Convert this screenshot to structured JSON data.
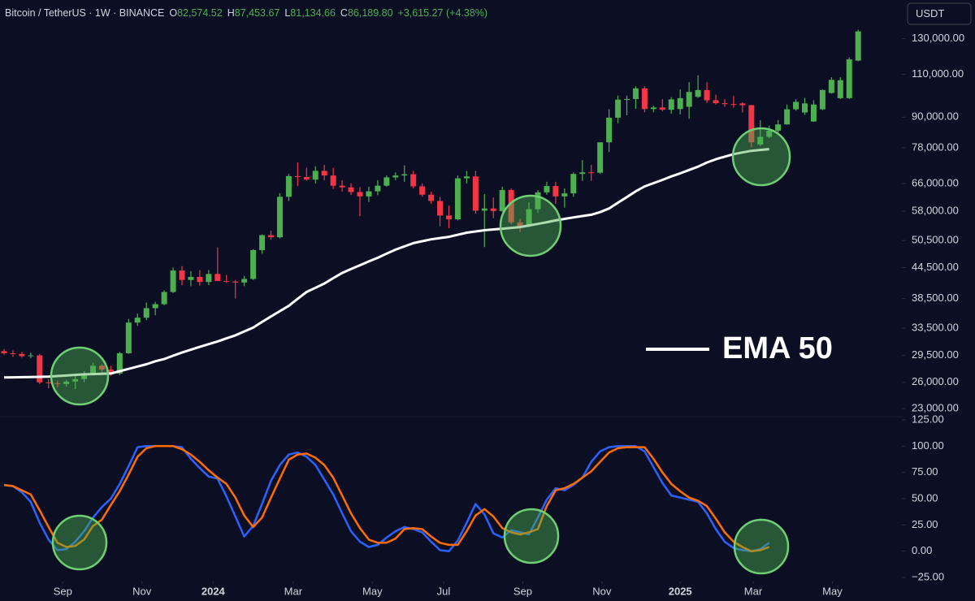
{
  "chart_data": [
    {
      "type": "candlestick",
      "title": "Bitcoin / TetherUS · 1W · BINANCE",
      "legend_values": [
        {
          "label": "O",
          "value": "82,574.52"
        },
        {
          "label": "H",
          "value": "87,453.67"
        },
        {
          "label": "L",
          "value": "81,134.66"
        },
        {
          "label": "C",
          "value": "86,189.80"
        }
      ],
      "change": "+3,615.27 (+4.38%)",
      "currency": "USDT",
      "log_scale": true,
      "up_color": "#4caf50",
      "down_color": "#f23645",
      "categories": [
        null,
        null,
        null,
        null,
        null,
        null,
        null,
        null,
        null,
        null,
        null,
        null,
        null,
        null,
        null,
        null,
        null,
        null,
        null,
        null,
        null,
        null,
        null,
        null,
        null,
        null,
        null,
        null,
        null,
        null,
        null,
        null,
        null,
        null,
        null,
        null,
        null,
        null,
        null,
        null,
        null,
        null,
        null,
        null,
        null,
        null,
        null,
        null,
        null,
        null,
        null,
        null,
        null,
        null,
        null,
        null,
        null,
        null,
        null,
        null,
        null,
        null,
        null,
        null,
        null,
        null,
        null,
        null,
        null,
        null,
        null,
        null,
        null,
        null,
        null,
        null,
        null,
        null,
        null,
        null,
        null,
        null,
        null,
        null,
        null,
        null,
        null,
        null,
        null,
        null,
        null,
        null,
        null,
        null,
        null,
        null,
        null
      ],
      "open": [
        30100,
        29800,
        29700,
        29400,
        29500,
        26000,
        25900,
        25800,
        26100,
        26400,
        27100,
        28100,
        27600,
        27100,
        29800,
        34400,
        35200,
        36800,
        37500,
        39700,
        43900,
        42000,
        42600,
        41600,
        43200,
        41800,
        41700,
        41500,
        42200,
        48300,
        51800,
        51300,
        62000,
        68300,
        68000,
        67200,
        70000,
        68500,
        65300,
        64800,
        63400,
        62100,
        63600,
        65300,
        67900,
        68500,
        68900,
        65100,
        62600,
        60800,
        56800,
        55800,
        67600,
        68200,
        58100,
        58700,
        58000,
        64000,
        55000,
        54000,
        58500,
        63300,
        65200,
        62100,
        63000,
        69000,
        69500,
        69400,
        80000,
        89800,
        97700,
        98000,
        103000,
        93500,
        94200,
        93200,
        93500,
        94500,
        99000,
        102200,
        97400,
        96100,
        95700,
        96000,
        95200,
        79200,
        82100,
        84500,
        87000,
        93400,
        92000,
        88200,
        93400,
        100800,
        98400,
        98400,
        117300
      ],
      "high": [
        30400,
        30200,
        30000,
        29900,
        29700,
        26400,
        26200,
        26300,
        26800,
        27400,
        28500,
        28300,
        28100,
        30000,
        35000,
        35900,
        37800,
        37900,
        40000,
        44500,
        44800,
        43800,
        44000,
        44000,
        48900,
        43000,
        42000,
        42800,
        48500,
        52000,
        52900,
        63000,
        69000,
        72800,
        71000,
        71500,
        72000,
        71000,
        67000,
        66000,
        64900,
        65000,
        67000,
        68500,
        69500,
        71800,
        70000,
        66000,
        63500,
        62000,
        59500,
        68500,
        70000,
        70000,
        62800,
        61800,
        65000,
        64500,
        56000,
        60500,
        64000,
        66500,
        66500,
        64500,
        69500,
        73600,
        72000,
        80000,
        93400,
        99600,
        99600,
        104000,
        104000,
        95000,
        98000,
        98800,
        102500,
        106000,
        109500,
        106000,
        100000,
        98000,
        99400,
        96500,
        95400,
        88700,
        86500,
        88800,
        95500,
        97900,
        98500,
        97400,
        102500,
        108500,
        108500,
        119000,
        135500
      ],
      "low": [
        29600,
        29300,
        29200,
        29100,
        25800,
        25300,
        25400,
        25500,
        25200,
        26000,
        26900,
        27000,
        26800,
        26900,
        29700,
        33900,
        34800,
        35600,
        37300,
        39500,
        41000,
        40800,
        40900,
        41000,
        42000,
        41400,
        38500,
        40800,
        42000,
        47500,
        50700,
        51000,
        60800,
        65200,
        66800,
        66000,
        67000,
        64300,
        63500,
        62500,
        56600,
        60500,
        62500,
        65000,
        67000,
        66500,
        64500,
        62000,
        60000,
        54000,
        53500,
        55500,
        66000,
        57300,
        49000,
        56100,
        57800,
        54500,
        52500,
        53800,
        57500,
        62600,
        60000,
        58900,
        62000,
        66800,
        66800,
        69000,
        76500,
        87500,
        90800,
        93600,
        92100,
        92100,
        92500,
        91500,
        91200,
        89300,
        98500,
        96200,
        95500,
        94500,
        94100,
        92000,
        78200,
        78600,
        81500,
        83000,
        86900,
        92800,
        91000,
        88000,
        93000,
        100500,
        98000,
        98000,
        117000
      ],
      "close": [
        29800,
        29700,
        29400,
        29500,
        26000,
        25900,
        25800,
        26100,
        26400,
        27100,
        28100,
        27600,
        27100,
        29800,
        34400,
        35200,
        36800,
        37500,
        39700,
        43900,
        42000,
        42600,
        41600,
        43200,
        41800,
        41700,
        41500,
        42200,
        48300,
        51800,
        51300,
        62000,
        68300,
        68000,
        67200,
        70000,
        68500,
        65300,
        64800,
        63400,
        62100,
        63600,
        65300,
        67900,
        68500,
        68900,
        65100,
        62600,
        60800,
        56800,
        55800,
        67600,
        68200,
        58100,
        58700,
        58000,
        64000,
        55000,
        54000,
        58500,
        63300,
        65200,
        62100,
        63000,
        69000,
        69500,
        69400,
        80000,
        89800,
        97700,
        98000,
        103000,
        93500,
        94200,
        93200,
        97800,
        98400,
        101300,
        102200,
        97400,
        96100,
        95700,
        95500,
        95200,
        80000,
        82100,
        84500,
        87000,
        93400,
        96700,
        96000,
        95500,
        102200,
        107200,
        107000,
        118000,
        134500
      ],
      "series": [
        {
          "name": "EMA 50",
          "color": "#ffffff",
          "values": [
            26600,
            26620,
            26640,
            26660,
            26680,
            26700,
            26780,
            26850,
            26930,
            27000,
            27030,
            27070,
            27100,
            27400,
            27700,
            28000,
            28300,
            28700,
            29000,
            29450,
            29900,
            30300,
            30700,
            31100,
            31500,
            31950,
            32400,
            33000,
            33600,
            34500,
            35400,
            36300,
            37200,
            38450,
            39700,
            40500,
            41300,
            42350,
            43400,
            44200,
            45000,
            45800,
            46600,
            47500,
            48400,
            49150,
            49900,
            50350,
            50800,
            51100,
            51400,
            51900,
            52400,
            52700,
            53000,
            53200,
            53400,
            53600,
            53800,
            54200,
            54600,
            55050,
            55500,
            55900,
            56300,
            56650,
            57000,
            57700,
            58700,
            60300,
            61900,
            63600,
            65100,
            66100,
            67100,
            68200,
            69200,
            70300,
            71400,
            72800,
            73900,
            74800,
            75700,
            76300,
            76900,
            77200,
            77500,
            null,
            null,
            null,
            null,
            null,
            null,
            null,
            null,
            null,
            null
          ]
        }
      ],
      "ylim": [
        22400,
        139000
      ],
      "yticks": [
        {
          "value": 130000,
          "label": "130,000.00"
        },
        {
          "value": 110000,
          "label": "110,000.00"
        },
        {
          "value": 90000,
          "label": "90,000.00"
        },
        {
          "value": 78000,
          "label": "78,000.00"
        },
        {
          "value": 66000,
          "label": "66,000.00"
        },
        {
          "value": 58000,
          "label": "58,000.00"
        },
        {
          "value": 50500,
          "label": "50,500.00"
        },
        {
          "value": 44500,
          "label": "44,500.00"
        },
        {
          "value": 38500,
          "label": "38,500.00"
        },
        {
          "value": 33500,
          "label": "33,500.00"
        },
        {
          "value": 29500,
          "label": "29,500.00"
        },
        {
          "value": 26000,
          "label": "26,000.00"
        },
        {
          "value": 23000,
          "label": "23,000.00"
        }
      ],
      "xticks": [
        {
          "value": 6.6,
          "label": "Sep"
        },
        {
          "value": 15.5,
          "label": "Nov"
        },
        {
          "value": 23.5,
          "label": "2024"
        },
        {
          "value": 32.5,
          "label": "Mar"
        },
        {
          "value": 41.4,
          "label": "May"
        },
        {
          "value": 49.4,
          "label": "Jul"
        },
        {
          "value": 58.3,
          "label": "Sep"
        },
        {
          "value": 67.2,
          "label": "Nov"
        },
        {
          "value": 76,
          "label": "2025"
        },
        {
          "value": 84.2,
          "label": "Mar"
        },
        {
          "value": 93.1,
          "label": "May"
        }
      ]
    },
    {
      "type": "line",
      "series": [
        {
          "color": "#2962ff",
          "values": [
            63,
            62,
            56,
            47,
            27,
            11,
            1,
            2,
            9,
            19,
            32,
            42,
            50,
            64,
            81,
            99,
            100,
            100,
            100,
            100,
            99,
            88,
            79,
            71,
            69,
            52,
            33,
            14,
            24,
            45,
            67,
            82,
            92,
            94,
            90,
            82,
            68,
            54,
            36,
            19,
            9,
            4,
            6,
            13,
            19,
            23,
            21,
            18,
            9,
            1,
            0,
            10,
            27,
            45,
            35,
            17,
            13,
            20,
            18,
            16,
            32,
            49,
            60,
            58,
            63,
            70,
            85,
            95,
            99,
            100,
            100,
            100,
            95,
            80,
            65,
            53,
            51,
            49,
            47,
            36,
            21,
            9,
            3,
            1,
            0,
            2,
            8,
            null,
            null,
            null,
            null,
            null,
            null,
            null,
            null,
            null,
            null
          ]
        },
        {
          "color": "#ff6d00",
          "values": [
            63,
            62,
            58,
            54,
            39,
            23,
            8,
            4,
            5,
            11,
            24,
            30,
            44,
            57,
            73,
            90,
            98,
            100,
            100,
            100,
            97,
            92,
            85,
            77,
            70,
            64,
            51,
            34,
            23,
            32,
            51,
            69,
            87,
            92,
            93,
            89,
            82,
            70,
            53,
            36,
            22,
            11,
            8,
            8,
            12,
            21,
            22,
            21,
            14,
            8,
            6,
            6,
            19,
            34,
            40,
            33,
            22,
            18,
            16,
            18,
            21,
            43,
            58,
            60,
            64,
            70,
            76,
            85,
            94,
            98,
            99,
            99,
            99,
            88,
            75,
            64,
            57,
            51,
            48,
            43,
            31,
            18,
            9,
            4,
            0,
            1,
            4,
            null,
            null,
            null,
            null,
            null,
            null,
            null,
            null,
            null,
            null
          ]
        }
      ],
      "ylim": [
        -25,
        125
      ],
      "yticks": [
        {
          "value": 125,
          "label": "125.00"
        },
        {
          "value": 100,
          "label": "100.00"
        },
        {
          "value": 75,
          "label": "75.00"
        },
        {
          "value": 50,
          "label": "50.00"
        },
        {
          "value": 25,
          "label": "25.00"
        },
        {
          "value": 0,
          "label": "0.00"
        },
        {
          "value": -25,
          "label": "−25.00"
        }
      ]
    }
  ]
}
